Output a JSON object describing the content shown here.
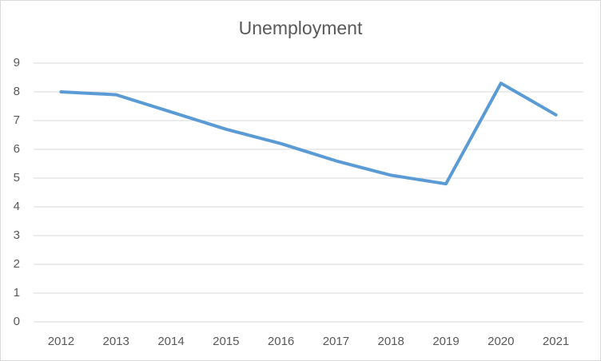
{
  "chart_data": {
    "type": "line",
    "title": "Unemployment",
    "categories": [
      "2012",
      "2013",
      "2014",
      "2015",
      "2016",
      "2017",
      "2018",
      "2019",
      "2020",
      "2021"
    ],
    "values": [
      8.0,
      7.9,
      7.3,
      6.7,
      6.2,
      5.6,
      5.1,
      4.8,
      8.3,
      7.2
    ],
    "color": "#5b9bd5",
    "ylim": [
      0,
      9
    ],
    "yticks": [
      0,
      1,
      2,
      3,
      4,
      5,
      6,
      7,
      8,
      9
    ],
    "grid": true
  }
}
